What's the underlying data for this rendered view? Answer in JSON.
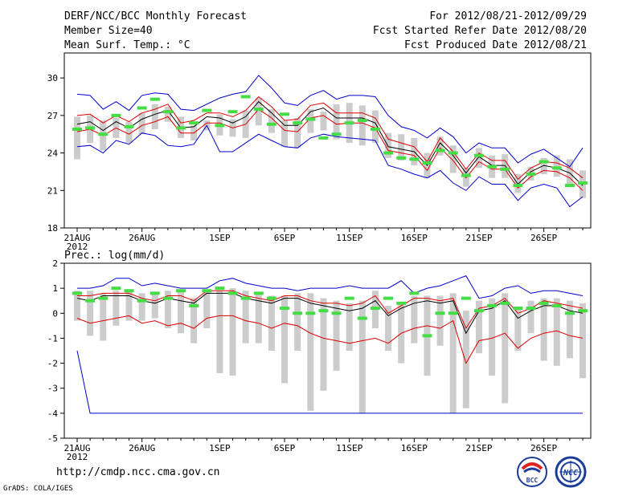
{
  "header": {
    "title": "DERF/NCC/BCC Monthly Forecast",
    "member_size": "Member Size=40",
    "variable": "Mean Surf. Temp.: °C",
    "period": "For 2012/08/21-2012/09/29",
    "started": "Fcst Started Refer Date 2012/08/20",
    "produced": "Fcst Produced Date 2012/08/21"
  },
  "footer": {
    "url": "http://cmdp.ncc.cma.gov.cn",
    "credit": "GrADS: COLA/IGES",
    "logo_bcc": "BCC",
    "logo_ncc": "NCC"
  },
  "colors": {
    "max": "#0000cc",
    "min": "#0000cc",
    "pct": "#dd0000",
    "mean": "#000000",
    "box": "#cccccc",
    "obs": "#44dd44"
  },
  "chart_data": [
    {
      "type": "line",
      "title": "Mean Surf. Temp.: °C",
      "x_tick_labels": [
        "21AUG",
        "26AUG",
        "1SEP",
        "6SEP",
        "11SEP",
        "16SEP",
        "21SEP",
        "26SEP"
      ],
      "x_tick_days": [
        1,
        6,
        12,
        17,
        22,
        27,
        32,
        37
      ],
      "x_year_label": "2012",
      "days": 40,
      "ylim": [
        18,
        32
      ],
      "y_ticks": [
        18,
        21,
        24,
        27,
        30
      ],
      "series": [
        {
          "name": "max",
          "values": [
            28.7,
            28.6,
            27.5,
            28.1,
            27.4,
            28.6,
            28.8,
            28.7,
            27.5,
            27.4,
            27.9,
            28.4,
            28.7,
            28.9,
            30.2,
            29.2,
            28.0,
            27.8,
            28.6,
            29.0,
            28.3,
            28.6,
            28.6,
            28.5,
            27.0,
            26.1,
            25.8,
            25.2,
            26.0,
            25.3,
            24.0,
            24.8,
            24.4,
            24.4,
            23.2,
            23.9,
            24.3,
            23.6,
            22.9,
            24.4
          ]
        },
        {
          "name": "upper",
          "values": [
            27.0,
            27.1,
            26.4,
            27.0,
            26.5,
            27.2,
            27.5,
            27.9,
            26.4,
            26.6,
            27.2,
            27.2,
            26.9,
            27.4,
            28.5,
            27.7,
            26.6,
            26.7,
            27.8,
            28.0,
            27.2,
            27.2,
            27.2,
            26.8,
            25.1,
            24.8,
            24.5,
            23.3,
            25.2,
            24.1,
            22.7,
            24.0,
            23.4,
            23.4,
            21.9,
            22.8,
            23.3,
            23.2,
            22.8,
            22.0
          ]
        },
        {
          "name": "mean",
          "values": [
            26.3,
            26.5,
            25.8,
            26.5,
            26.0,
            26.7,
            27.1,
            27.4,
            26.0,
            26.1,
            26.9,
            26.8,
            26.4,
            26.9,
            28.1,
            27.2,
            26.2,
            26.2,
            27.3,
            27.6,
            26.8,
            26.8,
            26.8,
            26.4,
            24.5,
            24.3,
            24.1,
            23.0,
            24.8,
            23.8,
            22.4,
            23.7,
            23.0,
            23.0,
            21.5,
            22.5,
            23.0,
            22.8,
            22.4,
            21.4
          ]
        },
        {
          "name": "lower",
          "values": [
            25.7,
            25.9,
            25.4,
            26.0,
            25.5,
            26.2,
            26.5,
            26.9,
            25.6,
            25.6,
            26.4,
            26.4,
            26.0,
            26.3,
            27.5,
            26.8,
            25.8,
            25.7,
            26.8,
            27.0,
            26.3,
            26.4,
            26.4,
            26.0,
            24.2,
            24.0,
            23.8,
            22.6,
            24.4,
            23.4,
            22.0,
            23.3,
            22.7,
            22.7,
            21.2,
            22.1,
            22.6,
            22.5,
            22.0,
            21.0
          ]
        },
        {
          "name": "min",
          "values": [
            24.5,
            24.6,
            24.0,
            25.0,
            24.7,
            25.6,
            25.4,
            24.6,
            24.5,
            24.7,
            26.2,
            24.1,
            24.1,
            24.8,
            25.5,
            25.0,
            24.5,
            24.4,
            25.2,
            25.5,
            25.3,
            25.2,
            25.1,
            25.0,
            23.0,
            22.7,
            22.3,
            22.0,
            22.6,
            21.6,
            21.0,
            22.1,
            21.5,
            21.5,
            20.2,
            21.2,
            21.5,
            21.2,
            19.7,
            20.5
          ]
        },
        {
          "name": "box_top",
          "values": [
            26.9,
            27.0,
            26.6,
            26.8,
            26.5,
            27.2,
            27.9,
            27.7,
            26.9,
            26.2,
            26.6,
            27.1,
            26.7,
            27.4,
            28.4,
            27.5,
            26.6,
            26.8,
            27.5,
            27.3,
            27.9,
            28.0,
            27.8,
            27.4,
            25.6,
            25.5,
            25.2,
            24.0,
            25.3,
            24.6,
            22.8,
            24.4,
            23.8,
            23.9,
            22.3,
            22.9,
            23.6,
            23.8,
            23.5,
            22.6
          ]
        },
        {
          "name": "box_bottom",
          "values": [
            23.5,
            24.8,
            24.2,
            25.2,
            24.8,
            25.5,
            25.9,
            26.5,
            25.2,
            25.0,
            25.8,
            25.4,
            25.3,
            25.2,
            26.2,
            25.6,
            24.5,
            24.4,
            25.6,
            25.8,
            25.1,
            24.8,
            24.6,
            24.8,
            23.6,
            23.4,
            23.0,
            22.0,
            23.8,
            22.4,
            21.3,
            22.8,
            22.0,
            22.0,
            20.8,
            21.8,
            22.3,
            22.1,
            21.3,
            20.4
          ]
        },
        {
          "name": "observed",
          "values": [
            25.9,
            26.0,
            25.5,
            27.0,
            26.1,
            27.6,
            28.3,
            27.3,
            26.0,
            26.4,
            27.4,
            26.2,
            27.3,
            28.5,
            27.5,
            26.3,
            27.1,
            26.4,
            26.7,
            25.2,
            25.5,
            26.4,
            26.6,
            25.9,
            24.0,
            23.6,
            23.5,
            23.2,
            24.2,
            24.0,
            22.2,
            23.8,
            22.9,
            22.7,
            21.4,
            22.3,
            23.3,
            22.8,
            21.4,
            21.6
          ]
        }
      ]
    },
    {
      "type": "line",
      "title": "Prec.: log(mm/d)",
      "x_tick_labels": [
        "21AUG",
        "26AUG",
        "1SEP",
        "6SEP",
        "11SEP",
        "16SEP",
        "21SEP",
        "26SEP"
      ],
      "x_tick_days": [
        1,
        6,
        12,
        17,
        22,
        27,
        32,
        37
      ],
      "x_year_label": "2012",
      "days": 40,
      "ylim": [
        -5,
        2
      ],
      "y_ticks": [
        -5,
        -4,
        -3,
        -2,
        -1,
        0,
        1,
        2
      ],
      "series": [
        {
          "name": "max",
          "values": [
            1.0,
            1.0,
            1.1,
            1.4,
            1.4,
            1.1,
            1.2,
            1.1,
            1.0,
            1.0,
            1.0,
            1.3,
            1.4,
            1.2,
            1.1,
            1.0,
            1.0,
            0.9,
            1.0,
            1.0,
            1.0,
            1.1,
            1.0,
            1.0,
            1.0,
            1.3,
            0.8,
            1.0,
            1.1,
            1.3,
            1.5,
            0.6,
            0.7,
            1.0,
            1.1,
            0.8,
            0.9,
            0.9,
            0.8,
            0.7
          ]
        },
        {
          "name": "upper",
          "values": [
            0.7,
            0.7,
            0.8,
            0.8,
            0.8,
            0.6,
            0.5,
            0.7,
            0.7,
            0.5,
            0.9,
            0.9,
            0.9,
            0.7,
            0.6,
            0.5,
            0.7,
            0.7,
            0.5,
            0.4,
            0.4,
            0.3,
            0.4,
            0.7,
            0.0,
            0.3,
            0.6,
            0.6,
            0.5,
            0.6,
            -0.6,
            0.2,
            0.3,
            0.6,
            0.0,
            0.2,
            0.5,
            0.4,
            0.3,
            0.2
          ]
        },
        {
          "name": "mean",
          "values": [
            0.6,
            0.5,
            0.7,
            0.7,
            0.7,
            0.5,
            0.4,
            0.6,
            0.5,
            0.4,
            0.8,
            0.8,
            0.8,
            0.6,
            0.5,
            0.4,
            0.6,
            0.6,
            0.4,
            0.3,
            0.2,
            0.1,
            0.2,
            0.5,
            -0.1,
            0.2,
            0.4,
            0.5,
            0.4,
            0.5,
            -0.8,
            0.1,
            0.2,
            0.5,
            -0.2,
            0.1,
            0.3,
            0.3,
            0.1,
            0.0
          ]
        },
        {
          "name": "lower",
          "values": [
            -0.2,
            -0.4,
            -0.3,
            -0.2,
            -0.1,
            -0.4,
            -0.3,
            -0.5,
            -0.4,
            -0.6,
            -0.2,
            -0.1,
            -0.1,
            -0.3,
            -0.4,
            -0.6,
            -0.4,
            -0.5,
            -0.8,
            -1.0,
            -1.1,
            -1.2,
            -1.1,
            -1.0,
            -1.2,
            -0.8,
            -0.6,
            -0.5,
            -0.6,
            -0.3,
            -2.0,
            -1.1,
            -1.0,
            -0.8,
            -1.4,
            -1.0,
            -0.8,
            -0.7,
            -0.9,
            -1.0
          ]
        },
        {
          "name": "min",
          "values": [
            -1.5,
            -4.0,
            -4.0,
            -4.0,
            -4.0,
            -4.0,
            -4.0,
            -4.0,
            -4.0,
            -4.0,
            -4.0,
            -4.0,
            -4.0,
            -4.0,
            -4.0,
            -4.0,
            -4.0,
            -4.0,
            -4.0,
            -4.0,
            -4.0,
            -4.0,
            -4.0,
            -4.0,
            -4.0,
            -4.0,
            -4.0,
            -4.0,
            -4.0,
            -4.0,
            -4.0,
            -4.0,
            -4.0,
            -4.0,
            -4.0,
            -4.0,
            -4.0,
            -4.0,
            -4.0,
            -4.0
          ]
        },
        {
          "name": "box_top",
          "values": [
            0.9,
            0.9,
            0.8,
            0.9,
            0.9,
            0.8,
            0.8,
            0.9,
            0.9,
            0.6,
            0.9,
            0.9,
            1.0,
            0.9,
            0.8,
            0.7,
            0.7,
            0.8,
            0.8,
            0.6,
            0.5,
            0.4,
            0.5,
            0.9,
            0.3,
            0.4,
            0.7,
            0.7,
            0.7,
            0.8,
            0.1,
            0.5,
            0.6,
            0.8,
            0.2,
            0.5,
            0.6,
            0.6,
            0.5,
            0.4
          ]
        },
        {
          "name": "box_bottom",
          "values": [
            -0.3,
            -0.9,
            -1.1,
            -0.5,
            -0.3,
            -0.3,
            -0.2,
            -0.6,
            -0.8,
            -1.2,
            -0.6,
            -2.4,
            -2.5,
            -1.2,
            -1.2,
            -1.5,
            -2.8,
            -1.5,
            -3.9,
            -3.1,
            -2.3,
            -1.5,
            -4.0,
            -0.6,
            -1.5,
            -2.0,
            -1.2,
            -2.5,
            -1.3,
            -4.0,
            -3.8,
            -1.6,
            -2.5,
            -3.6,
            -1.5,
            -0.8,
            -1.9,
            -2.1,
            -1.8,
            -2.6
          ]
        },
        {
          "name": "observed",
          "values": [
            0.8,
            0.5,
            0.6,
            1.0,
            0.9,
            0.5,
            0.8,
            0.6,
            0.9,
            0.3,
            0.9,
            1.0,
            0.8,
            0.6,
            0.8,
            0.6,
            0.2,
            0.0,
            0.0,
            0.1,
            0.0,
            0.6,
            -0.2,
            0.2,
            0.6,
            0.4,
            0.8,
            -0.9,
            0.0,
            -0.0,
            0.6,
            0.1,
            0.3,
            0.4,
            0.2,
            0.2,
            0.4,
            0.3,
            0.0,
            0.1
          ]
        }
      ]
    }
  ]
}
